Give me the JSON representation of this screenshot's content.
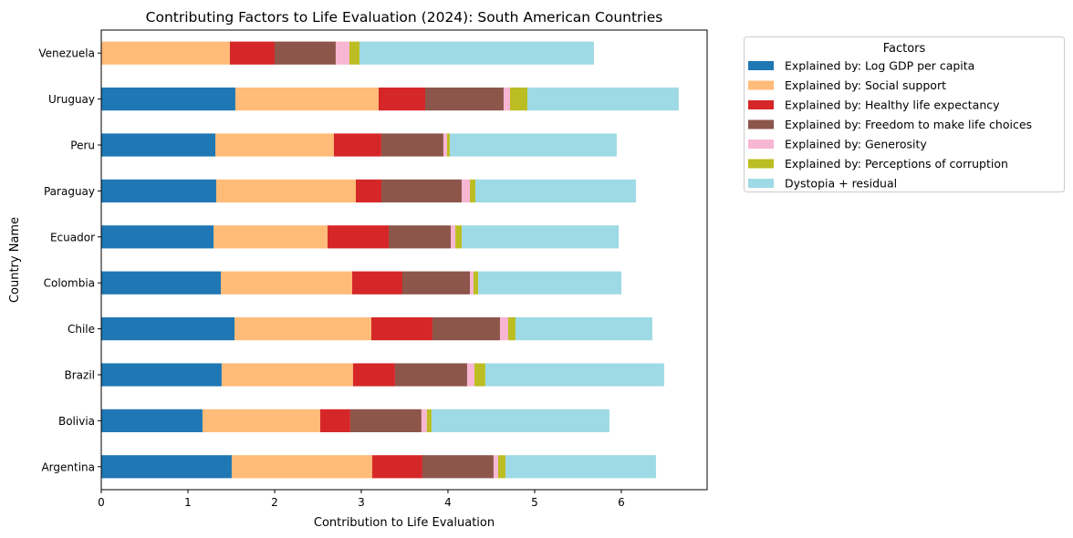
{
  "chart_data": {
    "type": "bar",
    "orientation": "horizontal",
    "stacked": true,
    "title": "Contributing Factors to Life Evaluation (2024): South American Countries",
    "xlabel": "Contribution to Life Evaluation",
    "ylabel": "Country Name",
    "xlim": [
      0,
      6.99
    ],
    "xticks": [
      0,
      1,
      2,
      3,
      4,
      5,
      6
    ],
    "grid": false,
    "legend": {
      "title": "Factors",
      "placement": "outside-top-right"
    },
    "categories": [
      "Argentina",
      "Bolivia",
      "Brazil",
      "Chile",
      "Colombia",
      "Ecuador",
      "Paraguay",
      "Peru",
      "Uruguay",
      "Venezuela"
    ],
    "series": [
      {
        "name": "Explained by: Log GDP per capita",
        "color": "#1f77b4",
        "values": [
          1.505,
          1.168,
          1.389,
          1.537,
          1.379,
          1.295,
          1.326,
          1.316,
          1.547,
          0.0
        ]
      },
      {
        "name": "Explained by: Social support",
        "color": "#ffbb78",
        "values": [
          1.621,
          1.358,
          1.516,
          1.579,
          1.516,
          1.316,
          1.611,
          1.368,
          1.653,
          1.484
        ]
      },
      {
        "name": "Explained by: Healthy life expectancy",
        "color": "#d62728",
        "values": [
          0.579,
          0.347,
          0.484,
          0.705,
          0.579,
          0.705,
          0.295,
          0.547,
          0.537,
          0.516
        ]
      },
      {
        "name": "Explained by: Freedom to make life choices",
        "color": "#8c564b",
        "values": [
          0.821,
          0.821,
          0.832,
          0.779,
          0.779,
          0.716,
          0.926,
          0.716,
          0.905,
          0.705
        ]
      },
      {
        "name": "Explained by: Generosity",
        "color": "#f7b6d2",
        "values": [
          0.053,
          0.063,
          0.084,
          0.095,
          0.042,
          0.053,
          0.095,
          0.042,
          0.074,
          0.158
        ]
      },
      {
        "name": "Explained by: Perceptions of corruption",
        "color": "#bcbd22",
        "values": [
          0.084,
          0.053,
          0.126,
          0.084,
          0.053,
          0.074,
          0.063,
          0.032,
          0.2,
          0.116
        ]
      },
      {
        "name": "Dystopia + residual",
        "color": "#9edae5",
        "values": [
          1.737,
          2.053,
          2.063,
          1.579,
          1.653,
          1.811,
          1.853,
          1.926,
          1.747,
          2.705
        ]
      }
    ]
  }
}
